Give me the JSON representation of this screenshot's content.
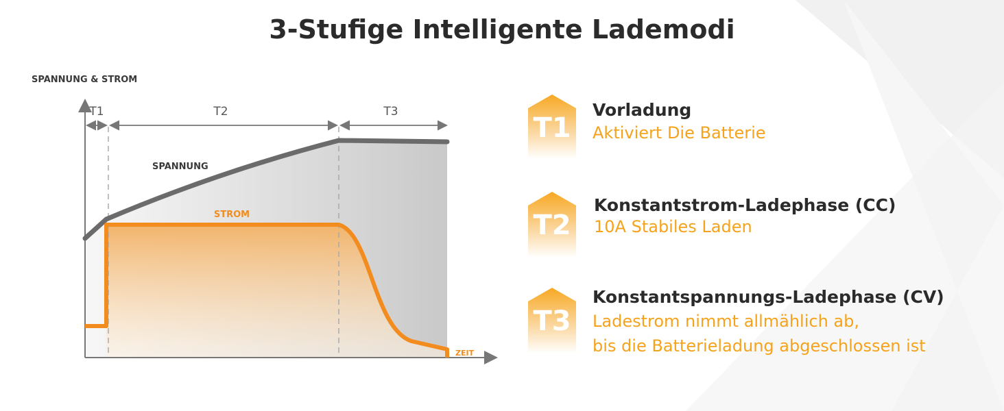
{
  "title": "3-Stufige Intelligente Lademodi",
  "diagram": {
    "y_axis_label": "SPANNUNG & STROM",
    "x_axis_label": "ZEIT",
    "phases": [
      "T1",
      "T2",
      "T3"
    ],
    "voltage_label": "SPANNUNG",
    "current_label": "STROM"
  },
  "steps": [
    {
      "badge": "T1",
      "title": "Vorladung",
      "description": [
        "Aktiviert Die Batterie"
      ]
    },
    {
      "badge": "T2",
      "title": "Konstantstrom-Ladephase (CC)",
      "description": [
        "10A Stabiles Laden"
      ]
    },
    {
      "badge": "T3",
      "title": "Konstantspannungs-Ladephase (CV)",
      "description": [
        "Ladestrom nimmt allmählich ab,",
        "bis die Batterieladung abgeschlossen ist"
      ]
    }
  ]
}
